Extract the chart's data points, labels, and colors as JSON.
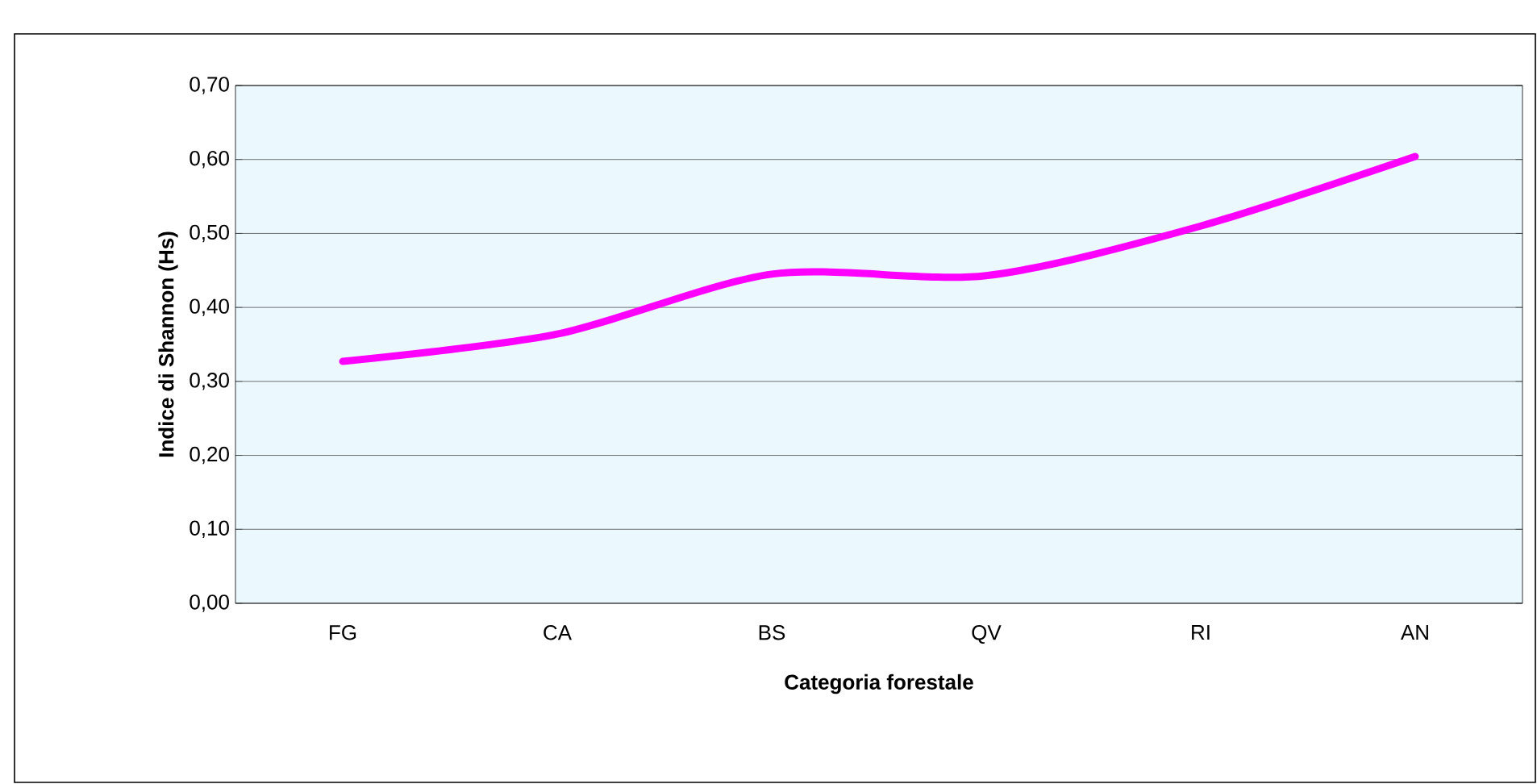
{
  "chart_data": {
    "type": "line",
    "xlabel": "Categoria forestale",
    "ylabel": "Indice di Shannon (Hs)",
    "categories": [
      "FG",
      "CA",
      "BS",
      "QV",
      "RI",
      "AN"
    ],
    "series": [
      {
        "color": "#ff00ff",
        "values": [
          0.327,
          0.364,
          0.445,
          0.443,
          0.51,
          0.604
        ]
      }
    ],
    "ylim": [
      0,
      0.7
    ],
    "yticks": [
      {
        "value": 0,
        "label": "0,00"
      },
      {
        "value": 0.1,
        "label": "0,10"
      },
      {
        "value": 0.2,
        "label": "0,20"
      },
      {
        "value": 0.3,
        "label": "0,30"
      },
      {
        "value": 0.4,
        "label": "0,40"
      },
      {
        "value": 0.5,
        "label": "0,50"
      },
      {
        "value": 0.6,
        "label": "0,60"
      },
      {
        "value": 0.7,
        "label": "0,70"
      }
    ],
    "grid": "y",
    "marker": "none",
    "line_style": "solid"
  }
}
